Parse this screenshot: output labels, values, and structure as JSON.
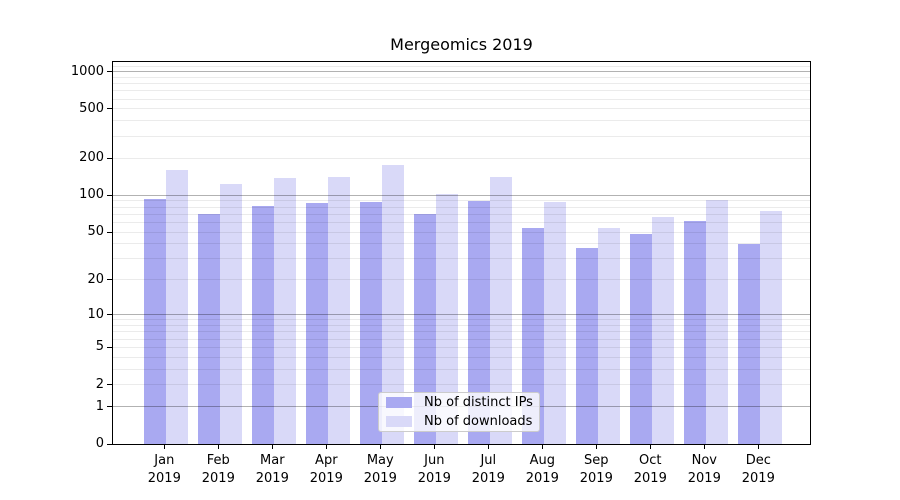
{
  "title": "Mergeomics 2019",
  "chart_data": {
    "type": "bar",
    "title": "Mergeomics 2019",
    "categories": [
      "Jan 2019",
      "Feb 2019",
      "Mar 2019",
      "Apr 2019",
      "May 2019",
      "Jun 2019",
      "Jul 2019",
      "Aug 2019",
      "Sep 2019",
      "Oct 2019",
      "Nov 2019",
      "Dec 2019"
    ],
    "x_tick_months": [
      "Jan",
      "Feb",
      "Mar",
      "Apr",
      "May",
      "Jun",
      "Jul",
      "Aug",
      "Sep",
      "Oct",
      "Nov",
      "Dec"
    ],
    "x_tick_year": "2019",
    "series": [
      {
        "name": "Nb of distinct IPs",
        "color": "#a9a9f1",
        "values": [
          93,
          70,
          82,
          87,
          89,
          71,
          90,
          54,
          37,
          48,
          62,
          40
        ]
      },
      {
        "name": "Nb of downloads",
        "color": "#d9d9f8",
        "values": [
          160,
          124,
          137,
          140,
          175,
          103,
          140,
          88,
          54,
          67,
          91,
          75
        ]
      }
    ],
    "yscale": "log1p",
    "yticks": [
      0,
      1,
      2,
      5,
      10,
      20,
      50,
      100,
      200,
      500,
      1000
    ],
    "ylim": [
      0,
      1216
    ],
    "grid": true,
    "legend_position": "lower center"
  },
  "colors": {
    "bar_distinct_ips": "#a9a9f1",
    "bar_downloads": "#d9d9f8",
    "major_grid": "#b3b3b3",
    "minor_grid": "#ececec",
    "axis": "#000000",
    "background": "#ffffff"
  }
}
